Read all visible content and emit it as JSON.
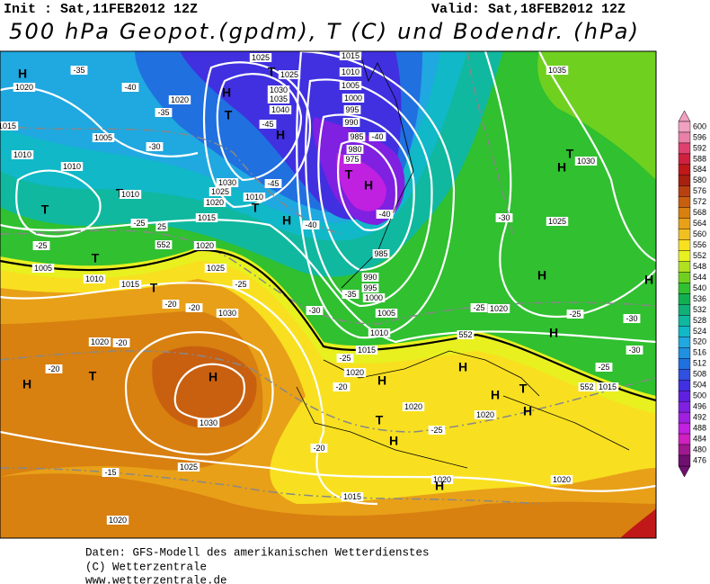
{
  "header": {
    "init": "Init : Sat,11FEB2012 12Z",
    "valid": "Valid: Sat,18FEB2012 12Z",
    "title": "500 hPa Geopot.(gpdm), T (C) und Bodendr. (hPa)"
  },
  "colorbar": {
    "levels": [
      600,
      596,
      592,
      588,
      584,
      580,
      576,
      572,
      568,
      564,
      560,
      556,
      552,
      548,
      544,
      540,
      536,
      532,
      528,
      524,
      520,
      516,
      512,
      508,
      504,
      500,
      496,
      492,
      488,
      484,
      480,
      476
    ],
    "colors": [
      "#f0a0c0",
      "#e880a8",
      "#e04070",
      "#d02040",
      "#c01818",
      "#a82010",
      "#b84010",
      "#c86010",
      "#d88010",
      "#e8a018",
      "#f0c020",
      "#f8e020",
      "#e8f020",
      "#b0e020",
      "#70d020",
      "#30c030",
      "#10b050",
      "#10b078",
      "#10b8a0",
      "#10b8c8",
      "#20a8e0",
      "#2090e0",
      "#2070e0",
      "#3050e0",
      "#4030e0",
      "#6020e0",
      "#8020e0",
      "#a020e0",
      "#c020e0",
      "#d020c0",
      "#a01890",
      "#701070"
    ]
  },
  "map_labels": [
    "H",
    "1020",
    "-35",
    "-40",
    "1020",
    "-35",
    "1015",
    "1005",
    "-30",
    "1010",
    "1010",
    "T",
    "1010",
    "T",
    "-25",
    "-25",
    "25",
    "1015",
    "1020",
    "1005",
    "T",
    "1010",
    "1015",
    "T",
    "1025",
    "-20",
    "-25",
    "-20",
    "1030",
    "1020",
    "-20",
    "H",
    "T",
    "-20",
    "H",
    "1030",
    "-15",
    "1025",
    "1020",
    "T",
    "1025",
    "1025",
    "H",
    "1030",
    "1035",
    "1040",
    "T",
    "-45",
    "H",
    "T",
    "H",
    "975",
    "980",
    "985",
    "990",
    "995",
    "1000",
    "1005",
    "1010",
    "1015",
    "-40",
    "-40",
    "1030",
    "1025",
    "1020",
    "1010",
    "T",
    "H",
    "-45",
    "-40",
    "985",
    "990",
    "995",
    "1000",
    "1005",
    "1010",
    "-35",
    "-30",
    "1015",
    "1020",
    "-25",
    "H",
    "-20",
    "1020",
    "T",
    "H",
    "-25",
    "-20",
    "1015",
    "1020",
    "H",
    "1020",
    "H",
    "H",
    "1020",
    "H",
    "T",
    "1015",
    "552",
    "552",
    "552",
    "-25",
    "1020",
    "H",
    "H",
    "-30",
    "1025",
    "1035",
    "T",
    "H",
    "1030",
    "-25",
    "-30",
    "-30",
    "-25",
    "H"
  ],
  "footer": [
    "Daten: GFS-Modell des amerikanischen Wetterdienstes",
    "(C) Wetterzentrale",
    "www.wetterzentrale.de"
  ]
}
